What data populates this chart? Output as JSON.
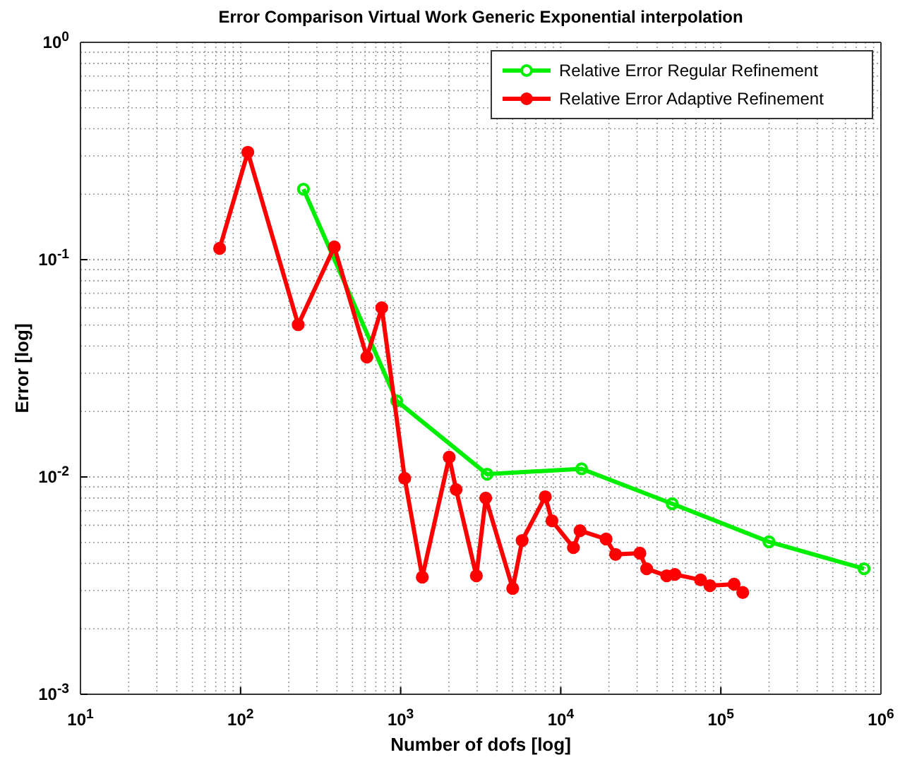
{
  "chart_data": {
    "type": "line",
    "title": "Error Comparison Virtual Work Generic Exponential interpolation",
    "xlabel": "Number of dofs [log]",
    "ylabel": "Error [log]",
    "log": "xy",
    "grid": true,
    "legend": "top right",
    "marker": "circle",
    "line_style": "solid",
    "xlim": [
      10,
      1000000
    ],
    "ylim": [
      0.001,
      1
    ],
    "xticks": [
      {
        "value": 10,
        "label": "10$^{1}$"
      },
      {
        "value": 100,
        "label": "10$^{2}$"
      },
      {
        "value": 1000,
        "label": "10$^{3}$"
      },
      {
        "value": 10000,
        "label": "10$^{4}$"
      },
      {
        "value": 100000,
        "label": "10$^{5}$"
      },
      {
        "value": 1000000,
        "label": "10$^{6}$"
      }
    ],
    "yticks": [
      {
        "value": 0.001,
        "label": "10$^{-3}$"
      },
      {
        "value": 0.01,
        "label": "10$^{-2}$"
      },
      {
        "value": 0.1,
        "label": "10$^{-1}$"
      },
      {
        "value": 1,
        "label": "10$^{0}$"
      }
    ],
    "series": [
      {
        "name": "Relative Error Regular Refinement",
        "color": "#00ee00",
        "x": [
          247,
          944,
          3467,
          13500,
          49700,
          200000,
          785000
        ],
        "values": [
          0.211,
          0.0224,
          0.0103,
          0.0109,
          0.00753,
          0.00503,
          0.00378
        ]
      },
      {
        "name": "Relative Error Adaptive Refinement",
        "color": "#ff0000",
        "x": [
          74,
          111,
          229,
          385,
          615,
          762,
          1060,
          1365,
          2010,
          2220,
          2970,
          3400,
          5010,
          5740,
          8000,
          8810,
          12000,
          13200,
          19200,
          22000,
          31200,
          34400,
          45900,
          51600,
          74700,
          85500,
          121000,
          137000
        ],
        "values": [
          0.1127,
          0.312,
          0.0502,
          0.1144,
          0.0356,
          0.0601,
          0.00986,
          0.00346,
          0.01233,
          0.00875,
          0.00351,
          0.008,
          0.00307,
          0.0051,
          0.00811,
          0.00629,
          0.00473,
          0.00566,
          0.00518,
          0.0044,
          0.00446,
          0.00378,
          0.00351,
          0.00356,
          0.00336,
          0.00316,
          0.00321,
          0.00294
        ]
      }
    ]
  }
}
